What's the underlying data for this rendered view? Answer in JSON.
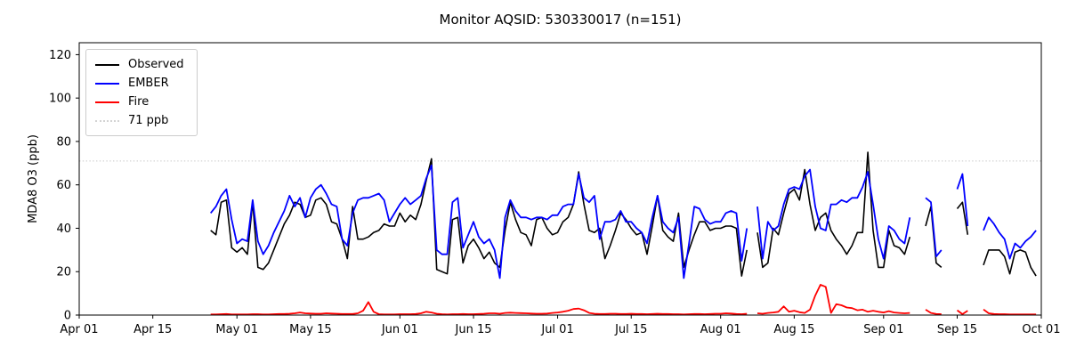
{
  "chart_data": {
    "type": "line",
    "title": "Monitor AQSID: 530330017 (n=151)",
    "xlabel": "",
    "ylabel": "MDA8 O3 (ppb)",
    "n_observations": 151,
    "grid": false,
    "legend_position": "upper left",
    "ylim": [
      0,
      125.5
    ],
    "xlim_days_from_apr01": [
      0,
      183
    ],
    "yticks": [
      0,
      20,
      40,
      60,
      80,
      100,
      120
    ],
    "xticks": [
      {
        "day": 0,
        "label": "Apr 01"
      },
      {
        "day": 14,
        "label": "Apr 15"
      },
      {
        "day": 30,
        "label": "May 01"
      },
      {
        "day": 44,
        "label": "May 15"
      },
      {
        "day": 61,
        "label": "Jun 01"
      },
      {
        "day": 75,
        "label": "Jun 15"
      },
      {
        "day": 91,
        "label": "Jul 01"
      },
      {
        "day": 105,
        "label": "Jul 15"
      },
      {
        "day": 122,
        "label": "Aug 01"
      },
      {
        "day": 136,
        "label": "Aug 15"
      },
      {
        "day": 153,
        "label": "Sep 01"
      },
      {
        "day": 167,
        "label": "Sep 15"
      },
      {
        "day": 183,
        "label": "Oct 01"
      }
    ],
    "threshold": {
      "value": 71,
      "label": "71 ppb",
      "color": "#d3d3d3",
      "style": "dotted"
    },
    "series_start_day": 25,
    "series_start_date": "Apr 26",
    "series_end_date": "Sep 30",
    "series": [
      {
        "name": "Observed",
        "color": "#000000",
        "width": 1.6,
        "values": [
          39,
          37,
          52,
          53,
          31,
          29,
          31,
          28,
          52,
          22,
          21,
          24,
          30,
          36,
          42,
          46,
          52,
          51,
          45,
          46,
          53,
          54,
          51,
          43,
          42,
          35,
          26,
          50,
          35,
          35,
          36,
          38,
          39,
          42,
          41,
          41,
          47,
          43,
          46,
          44,
          51,
          62,
          72,
          21,
          20,
          19,
          44,
          45,
          24,
          32,
          35,
          31,
          26,
          29,
          24,
          22,
          39,
          52,
          44,
          38,
          37,
          32,
          44,
          45,
          40,
          37,
          38,
          43,
          45,
          51,
          66,
          51,
          39,
          38,
          40,
          26,
          32,
          39,
          47,
          44,
          40,
          37,
          38,
          28,
          41,
          55,
          39,
          36,
          34,
          47,
          22,
          30,
          37,
          43,
          43,
          39,
          40,
          40,
          41,
          41,
          40,
          18,
          30,
          null,
          38,
          22,
          24,
          40,
          37,
          47,
          56,
          58,
          53,
          67,
          51,
          39,
          45,
          47,
          39,
          35,
          32,
          28,
          32,
          38,
          38,
          75,
          39,
          22,
          22,
          39,
          32,
          31,
          28,
          36,
          null,
          null,
          41,
          50,
          24,
          22,
          null,
          null,
          49,
          52,
          37,
          null,
          null,
          23,
          30,
          30,
          30,
          27,
          19,
          29,
          30,
          29,
          22,
          18
        ]
      },
      {
        "name": "EMBER",
        "color": "#0000ff",
        "width": 1.8,
        "values": [
          47,
          50,
          55,
          58,
          44,
          33,
          35,
          34,
          53,
          34,
          28,
          32,
          38,
          43,
          48,
          55,
          50,
          54,
          45,
          54,
          58,
          60,
          56,
          51,
          50,
          35,
          32,
          47,
          53,
          54,
          54,
          55,
          56,
          53,
          43,
          47,
          51,
          54,
          51,
          53,
          55,
          63,
          69,
          30,
          28,
          28,
          52,
          54,
          31,
          37,
          43,
          36,
          33,
          35,
          30,
          17,
          45,
          53,
          48,
          45,
          45,
          44,
          45,
          45,
          44,
          46,
          46,
          50,
          51,
          51,
          65,
          54,
          52,
          55,
          35,
          43,
          43,
          44,
          48,
          43,
          43,
          40,
          38,
          33,
          45,
          55,
          43,
          40,
          38,
          45,
          17,
          33,
          50,
          49,
          44,
          42,
          43,
          43,
          47,
          48,
          47,
          25,
          40,
          null,
          50,
          26,
          43,
          39,
          41,
          51,
          58,
          59,
          58,
          64,
          67,
          50,
          40,
          39,
          51,
          51,
          53,
          52,
          54,
          54,
          59,
          66,
          51,
          35,
          26,
          41,
          39,
          35,
          33,
          45,
          null,
          null,
          54,
          52,
          27,
          30,
          null,
          null,
          58,
          65,
          41,
          null,
          null,
          39,
          45,
          42,
          38,
          35,
          26,
          33,
          31,
          34,
          36,
          39
        ]
      },
      {
        "name": "Fire",
        "color": "#ff0000",
        "width": 1.8,
        "values": [
          0.3,
          0.3,
          0.4,
          0.5,
          0.3,
          0.3,
          0.3,
          0.3,
          0.4,
          0.4,
          0.3,
          0.3,
          0.4,
          0.5,
          0.5,
          0.6,
          0.8,
          1.2,
          0.8,
          0.7,
          0.6,
          0.6,
          0.8,
          0.7,
          0.6,
          0.5,
          0.5,
          0.5,
          0.8,
          2.0,
          6.0,
          1.5,
          0.4,
          0.3,
          0.3,
          0.3,
          0.4,
          0.4,
          0.4,
          0.5,
          0.8,
          1.5,
          1.2,
          0.6,
          0.4,
          0.3,
          0.4,
          0.4,
          0.5,
          0.4,
          0.4,
          0.5,
          0.6,
          0.8,
          0.8,
          0.6,
          1.0,
          1.1,
          1.0,
          0.9,
          0.8,
          0.7,
          0.6,
          0.6,
          0.7,
          1.0,
          1.2,
          1.5,
          2.0,
          2.8,
          3.0,
          2.2,
          1.0,
          0.6,
          0.5,
          0.5,
          0.6,
          0.6,
          0.5,
          0.5,
          0.6,
          0.5,
          0.5,
          0.4,
          0.5,
          0.6,
          0.5,
          0.5,
          0.4,
          0.4,
          0.3,
          0.4,
          0.5,
          0.5,
          0.4,
          0.5,
          0.6,
          0.6,
          0.8,
          0.7,
          0.5,
          0.4,
          0.6,
          null,
          0.8,
          0.6,
          1.0,
          1.2,
          1.5,
          4.0,
          1.5,
          2.0,
          1.3,
          1.0,
          2.5,
          9.0,
          14.0,
          13.0,
          1.0,
          5.0,
          4.5,
          3.5,
          3.2,
          2.2,
          2.5,
          1.5,
          2.0,
          1.5,
          1.2,
          1.8,
          1.2,
          1.0,
          0.8,
          1.0,
          null,
          null,
          2.5,
          1.0,
          0.5,
          0.4,
          null,
          null,
          2.2,
          0.4,
          2.0,
          null,
          null,
          2.6,
          0.8,
          0.5,
          0.4,
          0.4,
          0.3,
          0.3,
          0.3,
          0.3,
          0.3,
          0.3
        ]
      }
    ],
    "legend": [
      {
        "label": "Observed",
        "color": "#000000",
        "style": "solid"
      },
      {
        "label": "EMBER",
        "color": "#0000ff",
        "style": "solid"
      },
      {
        "label": "Fire",
        "color": "#ff0000",
        "style": "solid"
      },
      {
        "label": "71 ppb",
        "color": "#d3d3d3",
        "style": "dotted"
      }
    ]
  },
  "style": {
    "spine_color": "#000000",
    "tick_label_color": "#000000",
    "background": "#ffffff"
  }
}
